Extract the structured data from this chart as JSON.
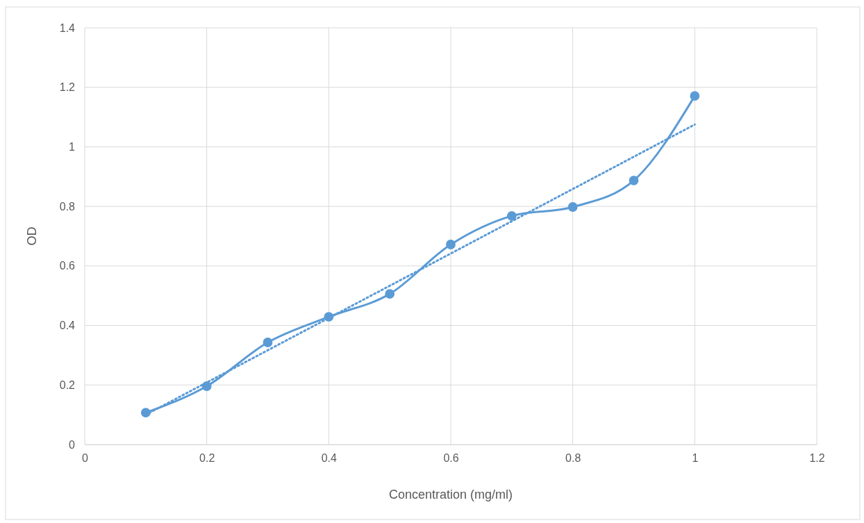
{
  "chart_data": {
    "type": "line",
    "xlabel": "Concentration (mg/ml)",
    "ylabel": "OD",
    "xlim": [
      0,
      1.2
    ],
    "xticks": [
      0,
      0.2,
      0.4,
      0.6,
      0.8,
      1,
      1.2
    ],
    "ylim": [
      0,
      1.4
    ],
    "yticks": [
      0,
      0.2,
      0.4,
      0.6,
      0.8,
      1,
      1.2,
      1.4
    ],
    "grid": true,
    "series": [
      {
        "color": "#5b9bd5",
        "x": [
          0.1,
          0.2,
          0.3,
          0.4,
          0.5,
          0.6,
          0.7,
          0.8,
          0.9,
          1
        ],
        "values": [
          0.107,
          0.196,
          0.343,
          0.429,
          0.506,
          0.672,
          0.768,
          0.798,
          0.887,
          1.171
        ],
        "marker": "circle",
        "line_style": "solid"
      },
      {
        "color": "#5b9bd5",
        "x": [
          0.1,
          1
        ],
        "values": [
          0.1,
          1.075
        ],
        "marker": "none",
        "line_style": "dotted"
      }
    ]
  }
}
